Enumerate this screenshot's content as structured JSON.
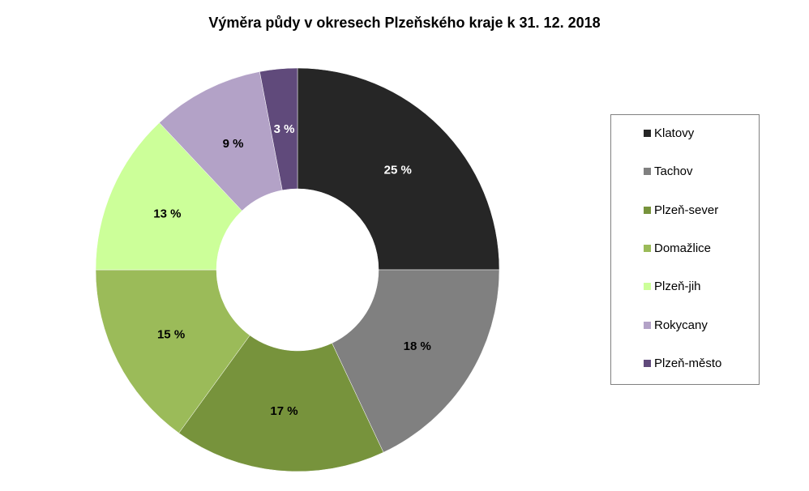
{
  "chart_data": {
    "type": "pie",
    "variant": "donut",
    "title": "Výměra půdy v okresech Plzeňského kraje k 31. 12. 2018",
    "categories": [
      "Klatovy",
      "Tachov",
      "Plzeň-sever",
      "Domažlice",
      "Plzeň-jih",
      "Rokycany",
      "Plzeň-město"
    ],
    "values": [
      25,
      18,
      17,
      15,
      13,
      9,
      3
    ],
    "data_labels": [
      "25 %",
      "18 %",
      "17 %",
      "15 %",
      "13 %",
      "9 %",
      "3 %"
    ],
    "colors": [
      "#262626",
      "#808080",
      "#77933C",
      "#9BBB59",
      "#CCFF99",
      "#B3A2C7",
      "#604A7B"
    ],
    "label_colors": [
      "#FFFFFF",
      "#000000",
      "#000000",
      "#000000",
      "#000000",
      "#000000",
      "#FFFFFF"
    ],
    "legend_position": "right"
  }
}
